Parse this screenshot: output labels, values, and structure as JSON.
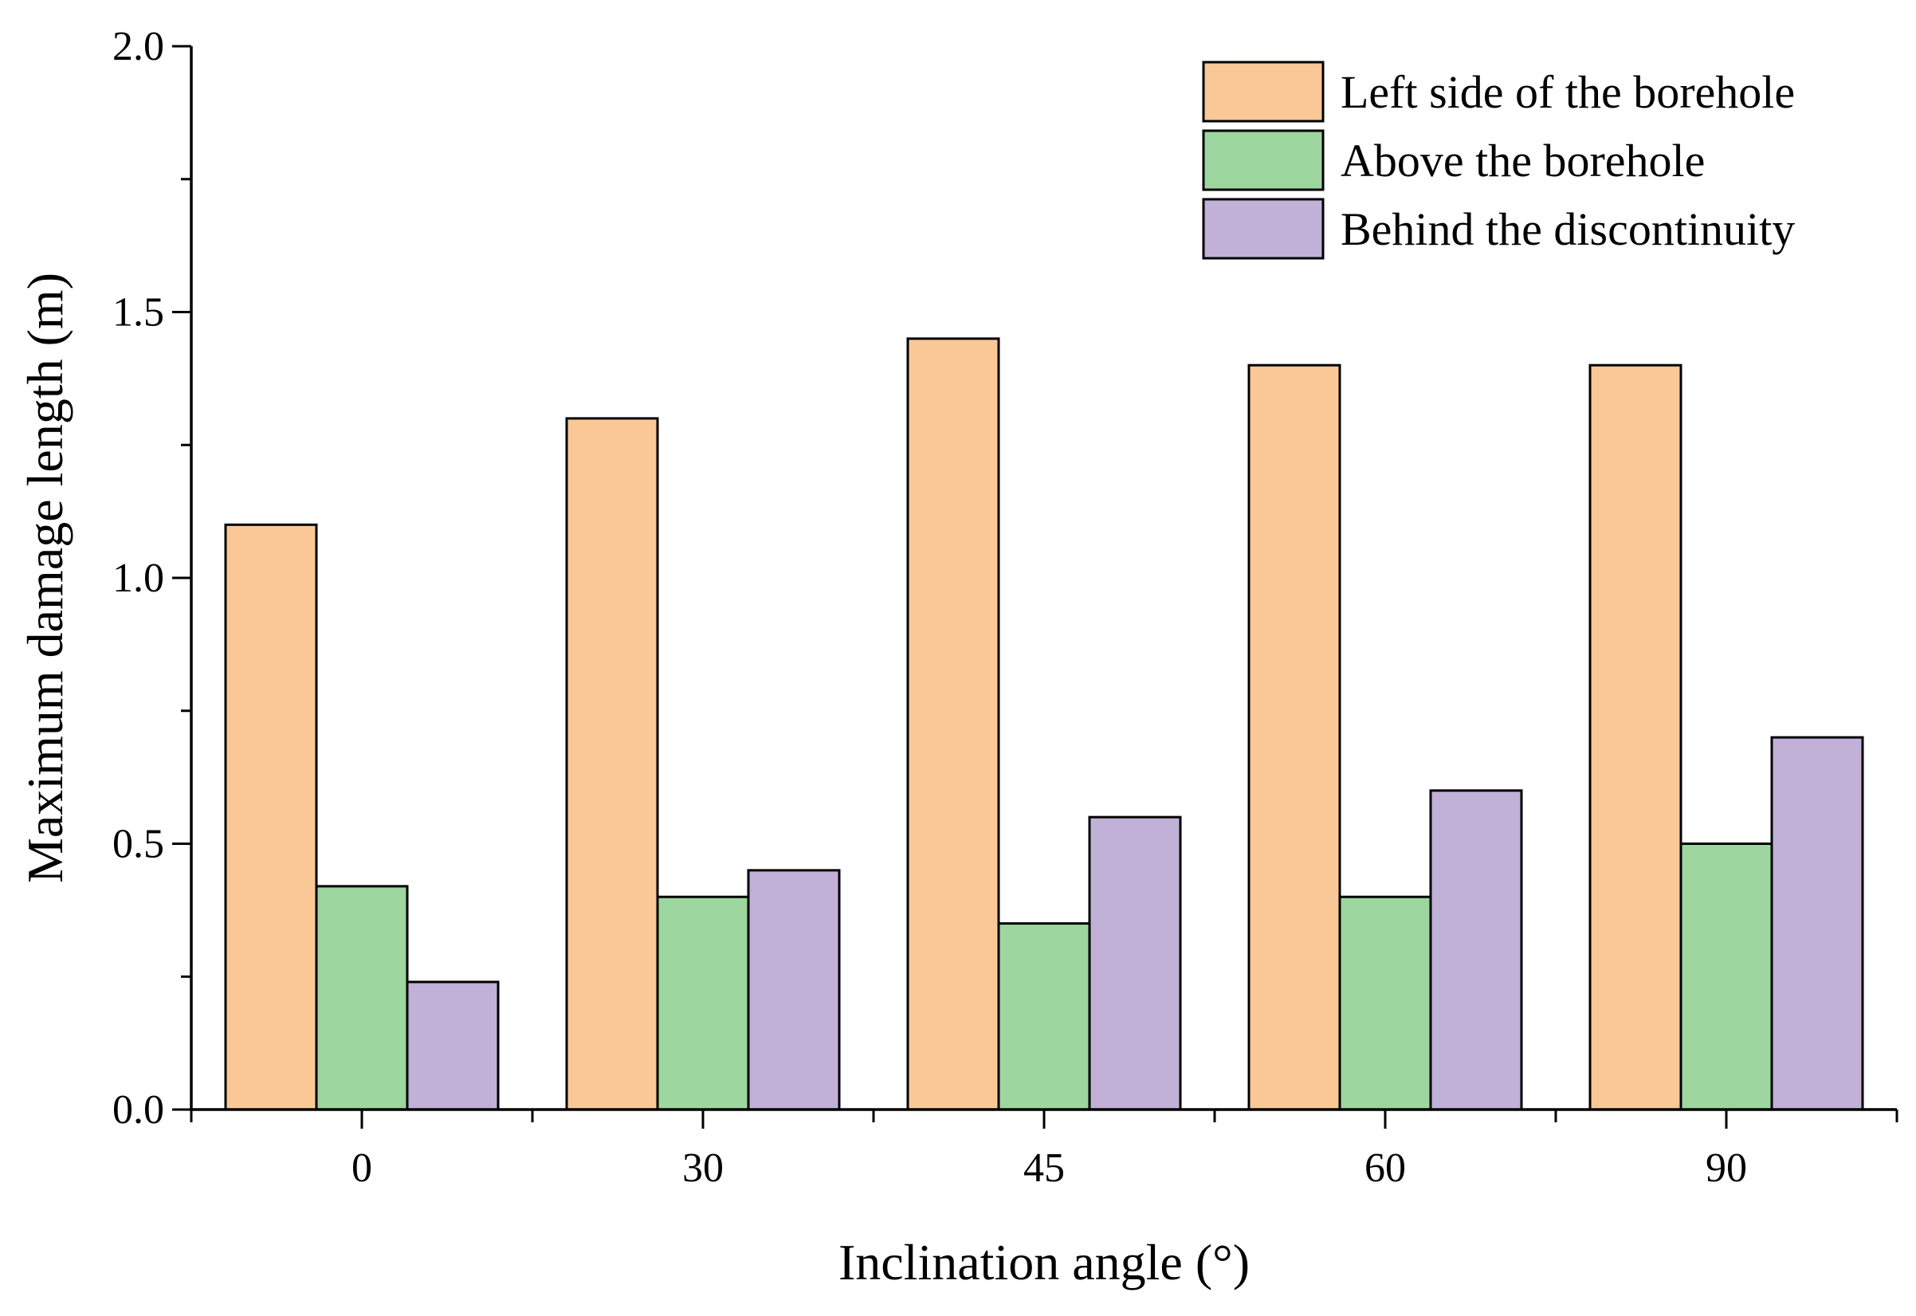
{
  "chart_data": {
    "type": "bar",
    "title": "",
    "xlabel": "Inclination angle (°)",
    "ylabel": "Maximum damage length (m)",
    "categories": [
      "0",
      "30",
      "45",
      "60",
      "90"
    ],
    "ylim": [
      0,
      2.0
    ],
    "yticks": [
      0.0,
      0.5,
      1.0,
      1.5,
      2.0
    ],
    "ytick_labels": [
      "0.0",
      "0.5",
      "1.0",
      "1.5",
      "2.0"
    ],
    "grid": false,
    "legend_position": "top-right",
    "series": [
      {
        "name": "Left side of the borehole",
        "color": "#FAC896",
        "values": [
          1.1,
          1.3,
          1.45,
          1.4,
          1.4
        ]
      },
      {
        "name": "Above the borehole",
        "color": "#9DD69E",
        "values": [
          0.42,
          0.4,
          0.35,
          0.4,
          0.5
        ]
      },
      {
        "name": "Behind the discontinuity",
        "color": "#C1B1D7",
        "values": [
          0.24,
          0.45,
          0.55,
          0.6,
          0.7
        ]
      }
    ]
  }
}
